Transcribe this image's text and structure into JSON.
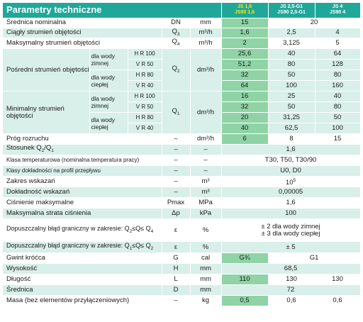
{
  "header": {
    "title": "Parametry techniczne",
    "models": [
      {
        "line1": "JS 1,6",
        "line2": "JS90 1,6"
      },
      {
        "line1": "JS 2,5-G1",
        "line2": "JS90 2,5-G1"
      },
      {
        "line1": "JS 4",
        "line2": "JS90 4"
      }
    ]
  },
  "labels": {
    "dn": "Średnica nominalna",
    "q3": "Ciągły strumień objętości",
    "q4": "Maksymalny strumień objętości",
    "q2": "Pośredni strumień objętości",
    "q1": "Minimalny strumień objętości",
    "cold": "dla wody zimnej",
    "warm": "dla wody ciepłej",
    "threshold": "Próg rozruchu",
    "ratio": "Stosunek Q",
    "temp_class": "Klasa temperaturowa (nominalna temperatura pracy)",
    "accuracy_class": "Klasy dokładności na profil przepływu",
    "range": "Zakres wskazań",
    "accuracy": "Dokładność wskazań",
    "max_pressure": "Ciśnienie maksymalne",
    "max_loss": "Maksymalna strata ciśnienia",
    "mpe_upper": "Dopuszczalny błąd graniczny w zakresie: Q",
    "mpe_lower": "Dopuszczalny błąd graniczny w zakresie: Q",
    "thread": "Gwint króćca",
    "height": "Wysokość",
    "length": "Długość",
    "diameter": "Średnica",
    "mass": "Masa (bez elementów przyłączeniowych)"
  },
  "sub": {
    "hr100": "H R 100",
    "vr50": "V R 50",
    "hr80": "H R 80",
    "vr40": "V R 40"
  },
  "symbols": {
    "dn": "DN",
    "q3": "Q",
    "q4": "Q",
    "q2": "Q",
    "q1": "Q",
    "dash": "–",
    "pmax": "Pmax",
    "dp": "Δp",
    "eps": "ε",
    "g": "G",
    "h": "H",
    "l": "L",
    "d": "D"
  },
  "units": {
    "mm": "mm",
    "m3h": "m³/h",
    "dm3h": "dm³/h",
    "m3": "m³",
    "mpa": "MPa",
    "kpa": "kPa",
    "pct": "%",
    "cal": "cal",
    "kg": "kg"
  },
  "values": {
    "dn": [
      "15",
      "20"
    ],
    "q3": [
      "1,6",
      "2,5",
      "4"
    ],
    "q4": [
      "2",
      "3,125",
      "5"
    ],
    "q2": [
      [
        "25,6",
        "40",
        "64"
      ],
      [
        "51,2",
        "80",
        "128"
      ],
      [
        "32",
        "50",
        "80"
      ],
      [
        "64",
        "100",
        "160"
      ]
    ],
    "q1": [
      [
        "16",
        "25",
        "40"
      ],
      [
        "32",
        "50",
        "80"
      ],
      [
        "20",
        "31,25",
        "50"
      ],
      [
        "40",
        "62,5",
        "100"
      ]
    ],
    "threshold": [
      "6",
      "8",
      "15"
    ],
    "ratio": "1,6",
    "temp_class": "T30, T50, T30/90",
    "accuracy_class": "U0, D0",
    "range": "10",
    "range_exp": "5",
    "accuracy": "0,00005",
    "max_pressure": "1,6",
    "max_loss": "100",
    "mpe_upper_1": "± 2 dla wody zimnej",
    "mpe_upper_2": "± 3 dla wody ciepłej",
    "mpe_lower": "± 5",
    "thread": [
      "G¾",
      "G1"
    ],
    "height": "68,5",
    "length": [
      "110",
      "130",
      "130"
    ],
    "diameter": "72",
    "mass": [
      "0,5",
      "0,6",
      "0,6"
    ]
  }
}
